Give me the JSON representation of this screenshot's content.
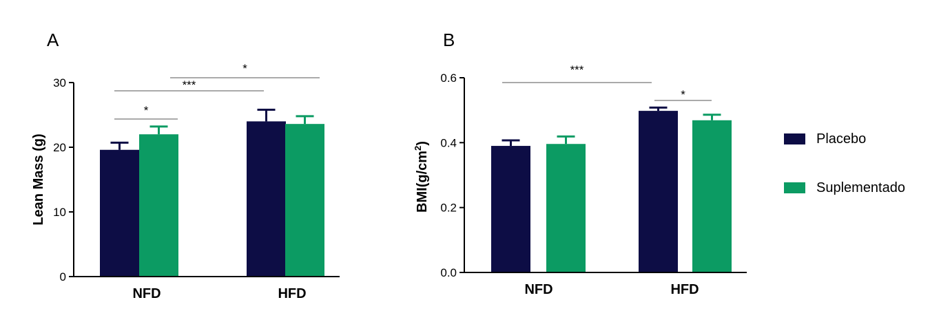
{
  "chart_data": [
    {
      "type": "bar",
      "panel_label": "A",
      "ylabel": "Lean Mass (g)",
      "ylim": [
        0,
        30
      ],
      "yticks": [
        0,
        10,
        20,
        30
      ],
      "categories": [
        "NFD",
        "HFD"
      ],
      "series": [
        {
          "name": "Placebo",
          "values": [
            19.6,
            24.0
          ],
          "errors": [
            1.1,
            1.8
          ]
        },
        {
          "name": "Suplementado",
          "values": [
            22.0,
            23.6
          ],
          "errors": [
            1.2,
            1.2
          ]
        }
      ],
      "annotations": [
        {
          "label": "*",
          "from": "NFD-Placebo",
          "to": "NFD-Suplementado"
        },
        {
          "label": "***",
          "from": "NFD-Placebo",
          "to": "HFD-Placebo"
        },
        {
          "label": "*",
          "from": "NFD-Suplementado",
          "to": "HFD-Suplementado"
        }
      ]
    },
    {
      "type": "bar",
      "panel_label": "B",
      "ylabel": "BMI(g/cm",
      "ylabel_superscript": "2",
      "ylabel_close": ")",
      "ylim": [
        0,
        0.6
      ],
      "yticks": [
        "0.0",
        "0.2",
        "0.4",
        "0.6"
      ],
      "categories": [
        "NFD",
        "HFD"
      ],
      "series": [
        {
          "name": "Placebo",
          "values": [
            0.39,
            0.498
          ],
          "errors": [
            0.017,
            0.01
          ]
        },
        {
          "name": "Suplementado",
          "values": [
            0.396,
            0.469
          ],
          "errors": [
            0.023,
            0.017
          ]
        }
      ],
      "annotations": [
        {
          "label": "***",
          "from": "NFD-Placebo",
          "to": "HFD-Placebo"
        },
        {
          "label": "*",
          "from": "HFD-Placebo",
          "to": "HFD-Suplementado"
        }
      ]
    }
  ],
  "legend": {
    "position": "right",
    "items": [
      {
        "name": "Placebo",
        "color": "#0d0d45"
      },
      {
        "name": "Suplementado",
        "color": "#0c9b63"
      }
    ]
  },
  "colors": {
    "placebo": "#0d0d45",
    "suplementado": "#0c9b63",
    "axis": "#000000",
    "bracket": "#555555"
  }
}
